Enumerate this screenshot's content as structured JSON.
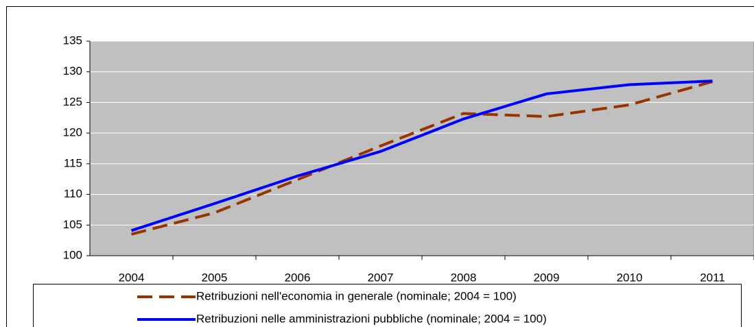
{
  "chart_data": {
    "type": "line",
    "categories": [
      "2004",
      "2005",
      "2006",
      "2007",
      "2008",
      "2009",
      "2010",
      "2011"
    ],
    "series": [
      {
        "name": "Retribuzioni nell'economia in generale (nominale; 2004 = 100)",
        "color": "#993300",
        "dash": true,
        "values": [
          103.5,
          107.0,
          112.4,
          117.9,
          123.2,
          122.7,
          124.6,
          128.4
        ]
      },
      {
        "name": "Retribuzioni nelle amministrazioni pubbliche (nominale; 2004 = 100)",
        "color": "#0000ff",
        "dash": false,
        "values": [
          104.1,
          108.5,
          113.0,
          117.0,
          122.3,
          126.4,
          127.9,
          128.5
        ]
      }
    ],
    "ylim": [
      100,
      135
    ],
    "yticks": [
      100,
      105,
      110,
      115,
      120,
      125,
      130,
      135
    ],
    "grid": true
  }
}
